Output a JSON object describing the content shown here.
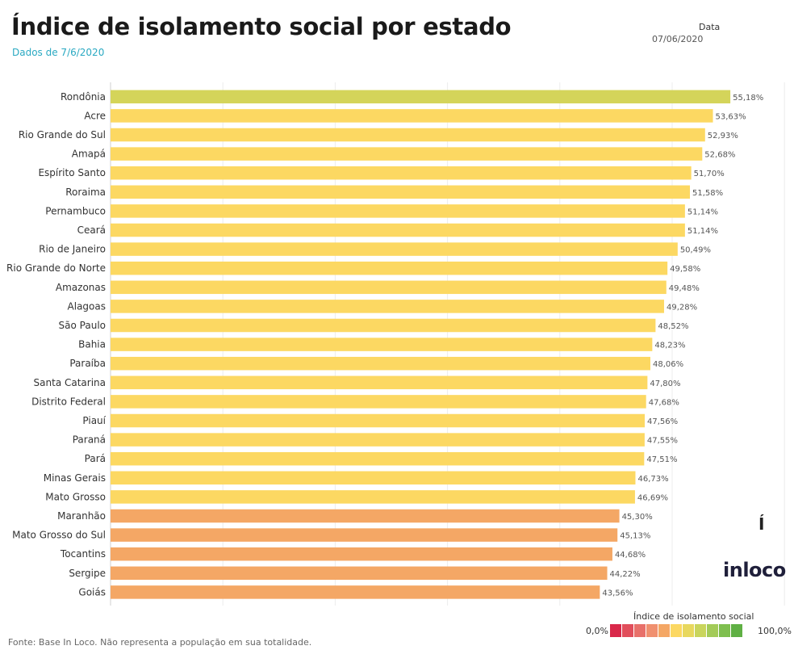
{
  "header": {
    "title": "Índice de isolamento social por estado",
    "subtitle": "Dados de 7/6/2020"
  },
  "filter": {
    "label": "Data",
    "value": "07/06/2020"
  },
  "chart_data": {
    "type": "bar",
    "orientation": "horizontal",
    "categories": [
      "Rondônia",
      "Acre",
      "Rio Grande do Sul",
      "Amapá",
      "Espírito Santo",
      "Roraima",
      "Pernambuco",
      "Ceará",
      "Rio de Janeiro",
      "Rio Grande do Norte",
      "Amazonas",
      "Alagoas",
      "São Paulo",
      "Bahia",
      "Paraíba",
      "Santa Catarina",
      "Distrito Federal",
      "Piauí",
      "Paraná",
      "Pará",
      "Minas Gerais",
      "Mato Grosso",
      "Maranhão",
      "Mato Grosso do Sul",
      "Tocantins",
      "Sergipe",
      "Goiás"
    ],
    "values": [
      55.18,
      53.63,
      52.93,
      52.68,
      51.7,
      51.58,
      51.14,
      51.14,
      50.49,
      49.58,
      49.48,
      49.28,
      48.52,
      48.23,
      48.06,
      47.8,
      47.68,
      47.56,
      47.55,
      47.51,
      46.73,
      46.69,
      45.3,
      45.13,
      44.68,
      44.22,
      43.56
    ],
    "value_labels": [
      "55,18%",
      "53,63%",
      "52,93%",
      "52,68%",
      "51,70%",
      "51,58%",
      "51,14%",
      "51,14%",
      "50,49%",
      "49,58%",
      "49,48%",
      "49,28%",
      "48,52%",
      "48,23%",
      "48,06%",
      "47,80%",
      "47,68%",
      "47,56%",
      "47,55%",
      "47,51%",
      "46,73%",
      "46,69%",
      "45,30%",
      "45,13%",
      "44,68%",
      "44,22%",
      "43,56%"
    ],
    "xlim": [
      0,
      60
    ],
    "grid": true,
    "colors": {
      "above_55": "#d4d45a",
      "from_46_to_55": "#fcd862",
      "below_46": "#f4a765"
    }
  },
  "legend": {
    "title": "Índice de isolamento social",
    "min_label": "0,0%",
    "max_label": "100,0%",
    "swatches": [
      "#d9284a",
      "#e14e5b",
      "#e8706a",
      "#f0906f",
      "#f4a765",
      "#fcd862",
      "#e8d85e",
      "#c9d55c",
      "#a3cb58",
      "#7fbf4f",
      "#5fb044"
    ]
  },
  "branding": {
    "mark": "Í",
    "name": "inloco"
  },
  "footer": {
    "source": "Fonte: Base In Loco. Não representa a população em sua totalidade."
  }
}
